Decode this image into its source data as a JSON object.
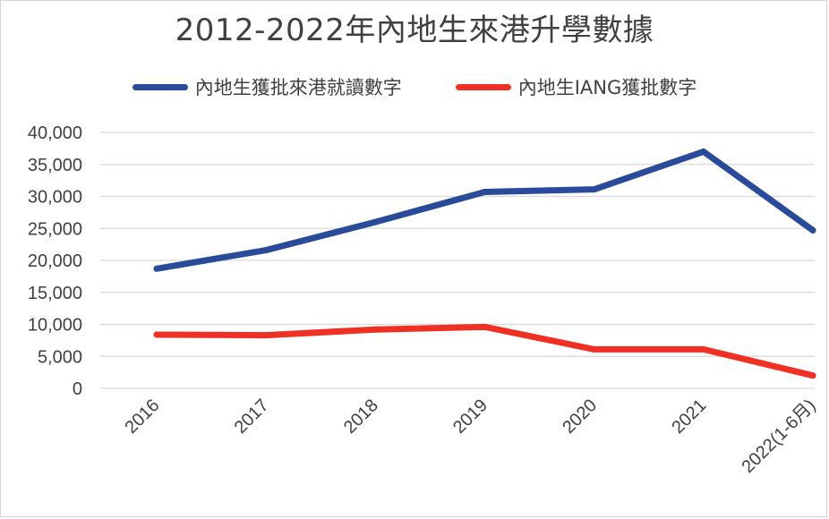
{
  "chart_data": {
    "type": "line",
    "title": "2012-2022年內地生來港升學數據",
    "categories": [
      "2016",
      "2017",
      "2018",
      "2019",
      "2020",
      "2021",
      "2022(1-6月)"
    ],
    "series": [
      {
        "name": "內地生獲批來港就讀數字",
        "color": "#2a4a9a",
        "values": [
          18700,
          21600,
          26000,
          30700,
          31100,
          37000,
          24700
        ]
      },
      {
        "name": "內地生IANG獲批數字",
        "color": "#ee3124",
        "values": [
          8400,
          8300,
          9200,
          9600,
          6100,
          6100,
          2000
        ]
      }
    ],
    "y_ticks": [
      "0",
      "5,000",
      "10,000",
      "15,000",
      "20,000",
      "25,000",
      "30,000",
      "35,000",
      "40,000"
    ],
    "ylim": [
      0,
      40000
    ],
    "xlabel": "",
    "ylabel": "",
    "grid": true,
    "legend_position": "top"
  }
}
